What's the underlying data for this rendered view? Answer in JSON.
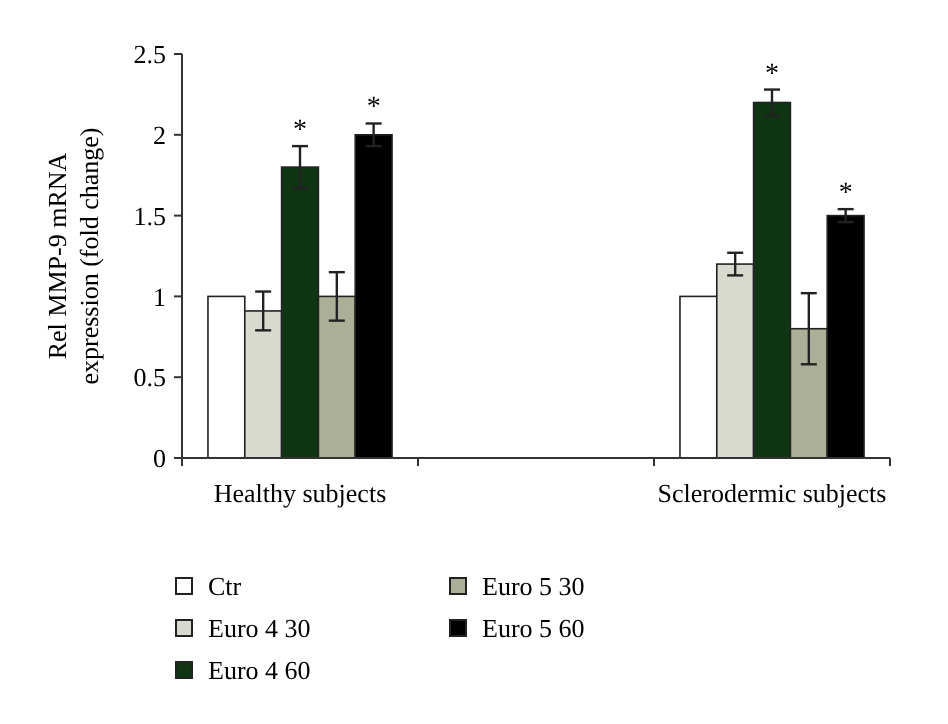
{
  "chart_data": {
    "type": "bar",
    "ylabel": "Rel MMP-9 mRNA expression (fold change)",
    "categories": [
      "Healthy subjects",
      null,
      "Sclerodermic subjects"
    ],
    "series": [
      {
        "name": "Ctr",
        "color": "#ffffff",
        "values": [
          1,
          null,
          1
        ],
        "errors": [
          null,
          null,
          null
        ]
      },
      {
        "name": "Euro 4 30",
        "color": "#d8d9cf",
        "values": [
          0.91,
          null,
          1.2
        ],
        "errors": [
          0.12,
          null,
          0.07
        ]
      },
      {
        "name": "Euro 4 60",
        "color": "#0f3512",
        "values": [
          1.8,
          null,
          2.2
        ],
        "errors": [
          0.13,
          null,
          0.08
        ],
        "value_labels": [
          "*",
          null,
          "*"
        ]
      },
      {
        "name": "Euro 5 30",
        "color": "#acaf98",
        "values": [
          1.0,
          null,
          0.8
        ],
        "errors": [
          0.15,
          null,
          0.22
        ]
      },
      {
        "name": "Euro 5 60",
        "color": "#000000",
        "values": [
          2.0,
          null,
          1.5
        ],
        "errors": [
          0.07,
          null,
          0.04
        ],
        "value_labels": [
          "*",
          null,
          "*"
        ]
      }
    ],
    "ylim": [
      0,
      2.5
    ],
    "yticks": [
      0,
      0.5,
      1,
      1.5,
      2,
      2.5
    ],
    "grid": false,
    "legend": "bottom"
  }
}
